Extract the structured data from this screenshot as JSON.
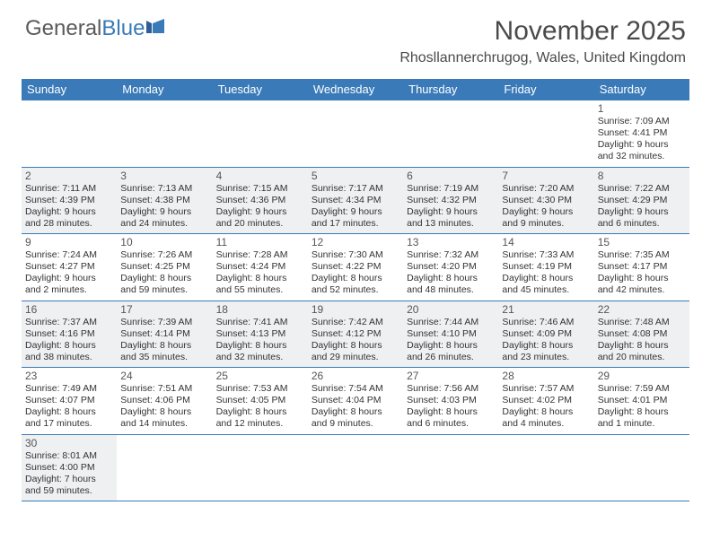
{
  "logo": {
    "text1": "General",
    "text2": "Blue"
  },
  "title": "November 2025",
  "location": "Rhosllannerchrugog, Wales, United Kingdom",
  "colors": {
    "header_bg": "#3a7ab8",
    "alt_row_bg": "#eef0f2",
    "border": "#3a7ab8",
    "text": "#333333",
    "title_text": "#4a4a4a"
  },
  "weekdays": [
    "Sunday",
    "Monday",
    "Tuesday",
    "Wednesday",
    "Thursday",
    "Friday",
    "Saturday"
  ],
  "weeks": [
    {
      "alt": false,
      "days": [
        null,
        null,
        null,
        null,
        null,
        null,
        {
          "n": "1",
          "sr": "Sunrise: 7:09 AM",
          "ss": "Sunset: 4:41 PM",
          "d1": "Daylight: 9 hours",
          "d2": "and 32 minutes."
        }
      ]
    },
    {
      "alt": true,
      "days": [
        {
          "n": "2",
          "sr": "Sunrise: 7:11 AM",
          "ss": "Sunset: 4:39 PM",
          "d1": "Daylight: 9 hours",
          "d2": "and 28 minutes."
        },
        {
          "n": "3",
          "sr": "Sunrise: 7:13 AM",
          "ss": "Sunset: 4:38 PM",
          "d1": "Daylight: 9 hours",
          "d2": "and 24 minutes."
        },
        {
          "n": "4",
          "sr": "Sunrise: 7:15 AM",
          "ss": "Sunset: 4:36 PM",
          "d1": "Daylight: 9 hours",
          "d2": "and 20 minutes."
        },
        {
          "n": "5",
          "sr": "Sunrise: 7:17 AM",
          "ss": "Sunset: 4:34 PM",
          "d1": "Daylight: 9 hours",
          "d2": "and 17 minutes."
        },
        {
          "n": "6",
          "sr": "Sunrise: 7:19 AM",
          "ss": "Sunset: 4:32 PM",
          "d1": "Daylight: 9 hours",
          "d2": "and 13 minutes."
        },
        {
          "n": "7",
          "sr": "Sunrise: 7:20 AM",
          "ss": "Sunset: 4:30 PM",
          "d1": "Daylight: 9 hours",
          "d2": "and 9 minutes."
        },
        {
          "n": "8",
          "sr": "Sunrise: 7:22 AM",
          "ss": "Sunset: 4:29 PM",
          "d1": "Daylight: 9 hours",
          "d2": "and 6 minutes."
        }
      ]
    },
    {
      "alt": false,
      "days": [
        {
          "n": "9",
          "sr": "Sunrise: 7:24 AM",
          "ss": "Sunset: 4:27 PM",
          "d1": "Daylight: 9 hours",
          "d2": "and 2 minutes."
        },
        {
          "n": "10",
          "sr": "Sunrise: 7:26 AM",
          "ss": "Sunset: 4:25 PM",
          "d1": "Daylight: 8 hours",
          "d2": "and 59 minutes."
        },
        {
          "n": "11",
          "sr": "Sunrise: 7:28 AM",
          "ss": "Sunset: 4:24 PM",
          "d1": "Daylight: 8 hours",
          "d2": "and 55 minutes."
        },
        {
          "n": "12",
          "sr": "Sunrise: 7:30 AM",
          "ss": "Sunset: 4:22 PM",
          "d1": "Daylight: 8 hours",
          "d2": "and 52 minutes."
        },
        {
          "n": "13",
          "sr": "Sunrise: 7:32 AM",
          "ss": "Sunset: 4:20 PM",
          "d1": "Daylight: 8 hours",
          "d2": "and 48 minutes."
        },
        {
          "n": "14",
          "sr": "Sunrise: 7:33 AM",
          "ss": "Sunset: 4:19 PM",
          "d1": "Daylight: 8 hours",
          "d2": "and 45 minutes."
        },
        {
          "n": "15",
          "sr": "Sunrise: 7:35 AM",
          "ss": "Sunset: 4:17 PM",
          "d1": "Daylight: 8 hours",
          "d2": "and 42 minutes."
        }
      ]
    },
    {
      "alt": true,
      "days": [
        {
          "n": "16",
          "sr": "Sunrise: 7:37 AM",
          "ss": "Sunset: 4:16 PM",
          "d1": "Daylight: 8 hours",
          "d2": "and 38 minutes."
        },
        {
          "n": "17",
          "sr": "Sunrise: 7:39 AM",
          "ss": "Sunset: 4:14 PM",
          "d1": "Daylight: 8 hours",
          "d2": "and 35 minutes."
        },
        {
          "n": "18",
          "sr": "Sunrise: 7:41 AM",
          "ss": "Sunset: 4:13 PM",
          "d1": "Daylight: 8 hours",
          "d2": "and 32 minutes."
        },
        {
          "n": "19",
          "sr": "Sunrise: 7:42 AM",
          "ss": "Sunset: 4:12 PM",
          "d1": "Daylight: 8 hours",
          "d2": "and 29 minutes."
        },
        {
          "n": "20",
          "sr": "Sunrise: 7:44 AM",
          "ss": "Sunset: 4:10 PM",
          "d1": "Daylight: 8 hours",
          "d2": "and 26 minutes."
        },
        {
          "n": "21",
          "sr": "Sunrise: 7:46 AM",
          "ss": "Sunset: 4:09 PM",
          "d1": "Daylight: 8 hours",
          "d2": "and 23 minutes."
        },
        {
          "n": "22",
          "sr": "Sunrise: 7:48 AM",
          "ss": "Sunset: 4:08 PM",
          "d1": "Daylight: 8 hours",
          "d2": "and 20 minutes."
        }
      ]
    },
    {
      "alt": false,
      "days": [
        {
          "n": "23",
          "sr": "Sunrise: 7:49 AM",
          "ss": "Sunset: 4:07 PM",
          "d1": "Daylight: 8 hours",
          "d2": "and 17 minutes."
        },
        {
          "n": "24",
          "sr": "Sunrise: 7:51 AM",
          "ss": "Sunset: 4:06 PM",
          "d1": "Daylight: 8 hours",
          "d2": "and 14 minutes."
        },
        {
          "n": "25",
          "sr": "Sunrise: 7:53 AM",
          "ss": "Sunset: 4:05 PM",
          "d1": "Daylight: 8 hours",
          "d2": "and 12 minutes."
        },
        {
          "n": "26",
          "sr": "Sunrise: 7:54 AM",
          "ss": "Sunset: 4:04 PM",
          "d1": "Daylight: 8 hours",
          "d2": "and 9 minutes."
        },
        {
          "n": "27",
          "sr": "Sunrise: 7:56 AM",
          "ss": "Sunset: 4:03 PM",
          "d1": "Daylight: 8 hours",
          "d2": "and 6 minutes."
        },
        {
          "n": "28",
          "sr": "Sunrise: 7:57 AM",
          "ss": "Sunset: 4:02 PM",
          "d1": "Daylight: 8 hours",
          "d2": "and 4 minutes."
        },
        {
          "n": "29",
          "sr": "Sunrise: 7:59 AM",
          "ss": "Sunset: 4:01 PM",
          "d1": "Daylight: 8 hours",
          "d2": "and 1 minute."
        }
      ]
    },
    {
      "alt": true,
      "days": [
        {
          "n": "30",
          "sr": "Sunrise: 8:01 AM",
          "ss": "Sunset: 4:00 PM",
          "d1": "Daylight: 7 hours",
          "d2": "and 59 minutes."
        },
        null,
        null,
        null,
        null,
        null,
        null
      ]
    }
  ]
}
